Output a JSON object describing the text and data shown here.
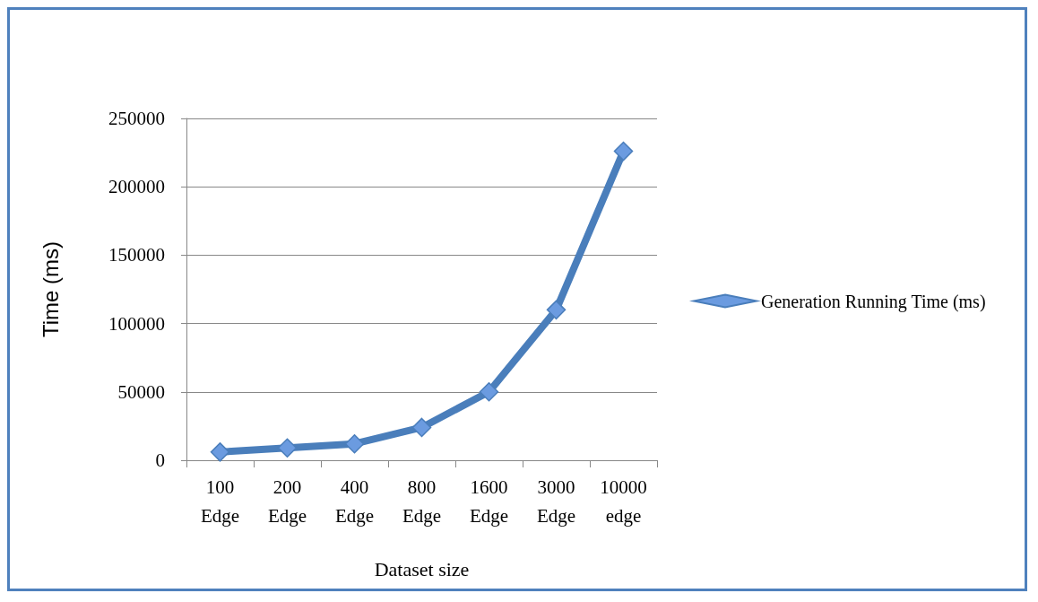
{
  "chart_data": {
    "type": "line",
    "xlabel": "Dataset size",
    "ylabel": "Time (ms)",
    "categories": [
      "100 Edge",
      "200 Edge",
      "400 Edge",
      "800 Edge",
      "1600 Edge",
      "3000 Edge",
      "10000 edge"
    ],
    "series": [
      {
        "name": "Generation Running Time (ms)",
        "color": "#4a7ebb",
        "values": [
          6000,
          9000,
          12000,
          24000,
          50000,
          110000,
          226000
        ]
      }
    ],
    "ylim": [
      0,
      250000
    ],
    "yticks": [
      0,
      50000,
      100000,
      150000,
      200000,
      250000
    ],
    "grid": "y",
    "legend": "right",
    "marker": "diamond",
    "line_style": "solid"
  }
}
